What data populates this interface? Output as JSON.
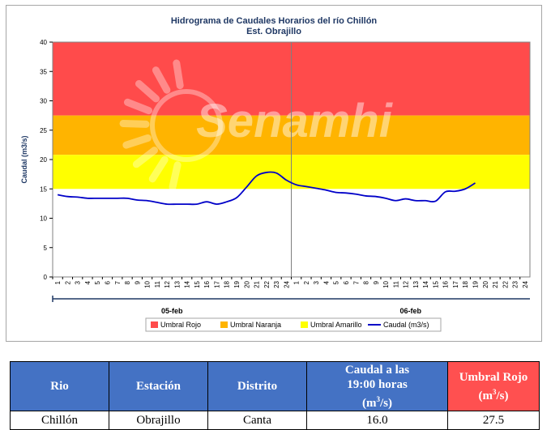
{
  "chart_data": {
    "type": "line",
    "title": "Hidrograma de Caudales Horarios del río Chillón",
    "subtitle": "Est. Obrajillo",
    "ylabel": "Caudal  (m3/s)",
    "ylim": [
      0,
      40
    ],
    "yticks": [
      0,
      5,
      10,
      15,
      20,
      25,
      30,
      35,
      40
    ],
    "days": [
      {
        "label": "05-feb",
        "hours": [
          "1",
          "2",
          "3",
          "4",
          "5",
          "6",
          "7",
          "8",
          "9",
          "10",
          "11",
          "12",
          "13",
          "14",
          "15",
          "16",
          "17",
          "18",
          "19",
          "20",
          "21",
          "22",
          "23",
          "24"
        ]
      },
      {
        "label": "06-feb",
        "hours": [
          "1",
          "2",
          "3",
          "4",
          "5",
          "6",
          "7",
          "8",
          "9",
          "10",
          "11",
          "12",
          "13",
          "14",
          "15",
          "16",
          "17",
          "18",
          "19",
          "20",
          "21",
          "22",
          "23",
          "24"
        ]
      }
    ],
    "thresholds": [
      {
        "name": "Umbral Rojo",
        "from": 27.5,
        "to": 40,
        "color": "#ff4b4b"
      },
      {
        "name": "Umbral Naranja",
        "from": 20.8,
        "to": 27.5,
        "color": "#ffb400"
      },
      {
        "name": "Umbral Amarillo",
        "from": 15.0,
        "to": 20.8,
        "color": "#ffff00"
      }
    ],
    "series": [
      {
        "name": "Caudal (m3/s)",
        "color": "#0000c8",
        "values": [
          14.0,
          13.7,
          13.6,
          13.4,
          13.4,
          13.4,
          13.4,
          13.4,
          13.1,
          13.0,
          12.7,
          12.4,
          12.4,
          12.4,
          12.4,
          12.8,
          12.4,
          12.8,
          13.5,
          15.3,
          17.2,
          17.8,
          17.7,
          16.5,
          15.7,
          15.4,
          15.1,
          14.8,
          14.4,
          14.3,
          14.1,
          13.8,
          13.7,
          13.4,
          13.0,
          13.3,
          13.0,
          13.0,
          12.9,
          14.5,
          14.6,
          15.0,
          16.0
        ]
      }
    ],
    "legend_position": "bottom",
    "watermark": "Senamhi"
  },
  "table": {
    "headers": {
      "rio": "Rio",
      "estacion": "Estación",
      "distrito": "Distrito",
      "caudal_line1": "Caudal a las",
      "caudal_line2": "19:00 horas",
      "caudal_unit": "(m",
      "umbral_line1": "Umbral Rojo",
      "umbral_unit": "(m",
      "sup3": "3",
      "unit_close": "/s)"
    },
    "row": {
      "rio": "Chillón",
      "estacion": "Obrajillo",
      "distrito": "Canta",
      "caudal": "16.0",
      "umbral_rojo": "27.5"
    }
  }
}
